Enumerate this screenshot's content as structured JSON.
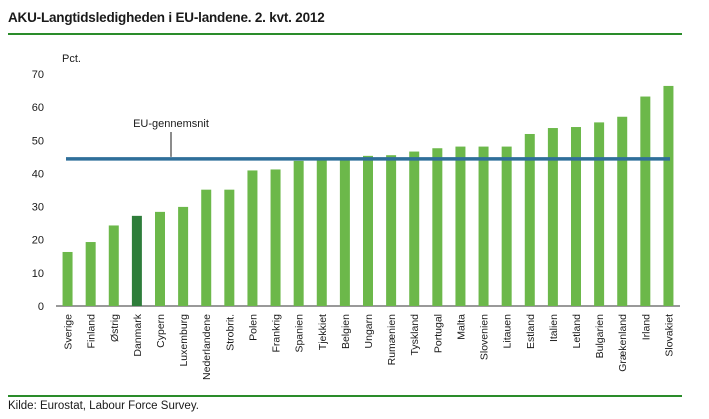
{
  "title": "AKU-Langtidsledigheden i EU-landene. 2. kvt. 2012",
  "source": "Kilde: Eurostat, Labour Force Survey.",
  "colors": {
    "bar": "#6cb84a",
    "highlight": "#2e7d3a",
    "avg_line": "#2f6f9a",
    "rule": "#2a8c2a"
  },
  "chart_data": {
    "type": "bar",
    "ylabel": "Pct.",
    "ylim": [
      0,
      70
    ],
    "yticks": [
      "0",
      "10",
      "20",
      "30",
      "40",
      "50",
      "60",
      "70"
    ],
    "categories": [
      "Sverige",
      "Finland",
      "Østrig",
      "Danmark",
      "Cypern",
      "Luxemburg",
      "Nederlandene",
      "Strobrit.",
      "Polen",
      "Frankrig",
      "Spanien",
      "Tjekkiet",
      "Belgien",
      "Ungarn",
      "Rumænien",
      "Tyskland",
      "Portugal",
      "Malta",
      "Slovenien",
      "Litauen",
      "Estland",
      "Italien",
      "Letland",
      "Bulgarien",
      "Grækenland",
      "Irland",
      "Slovakiet"
    ],
    "values": [
      16.3,
      19.3,
      24.3,
      27.2,
      28.4,
      29.9,
      35.1,
      35.1,
      40.9,
      41.2,
      43.8,
      44.0,
      44.0,
      45.3,
      45.5,
      46.6,
      47.6,
      48.1,
      48.1,
      48.1,
      51.9,
      53.7,
      54.0,
      55.4,
      57.1,
      63.2,
      66.4
    ],
    "highlight_category": "Danmark",
    "average": {
      "label": "EU-gennemsnit",
      "value": 44.4
    },
    "grid": false
  }
}
